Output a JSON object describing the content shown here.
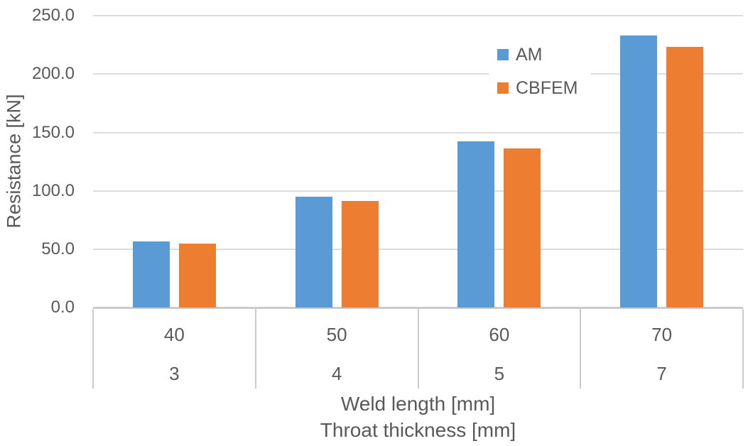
{
  "chart_data": {
    "type": "bar",
    "title": "",
    "ylabel": "Resistance [kN]",
    "xlabel_line1": "Weld length [mm]",
    "xlabel_line2": "Throat thickness [mm]",
    "categories": [
      "40",
      "50",
      "60",
      "70"
    ],
    "categories_row2": [
      "3",
      "4",
      "5",
      "7"
    ],
    "series": [
      {
        "name": "AM",
        "color": "#5B9BD5",
        "values": [
          56.5,
          95.0,
          142.0,
          232.5
        ]
      },
      {
        "name": "CBFEM",
        "color": "#ED7D31",
        "values": [
          54.5,
          91.0,
          136.0,
          223.0
        ]
      }
    ],
    "ylim": [
      0,
      250
    ],
    "ytick_step": 50,
    "ytick_decimals": 1,
    "ytick_labels": [
      "0.0",
      "50.0",
      "100.0",
      "150.0",
      "200.0",
      "250.0"
    ],
    "grid": true,
    "legend_position": "inside-top-right"
  },
  "colors": {
    "text": "#595959",
    "gridline": "#DCDCDC",
    "axis_line": "#CBCBCB",
    "background": "#FFFFFF",
    "series_am": "#5B9BD5",
    "series_cbfem": "#ED7D31"
  }
}
